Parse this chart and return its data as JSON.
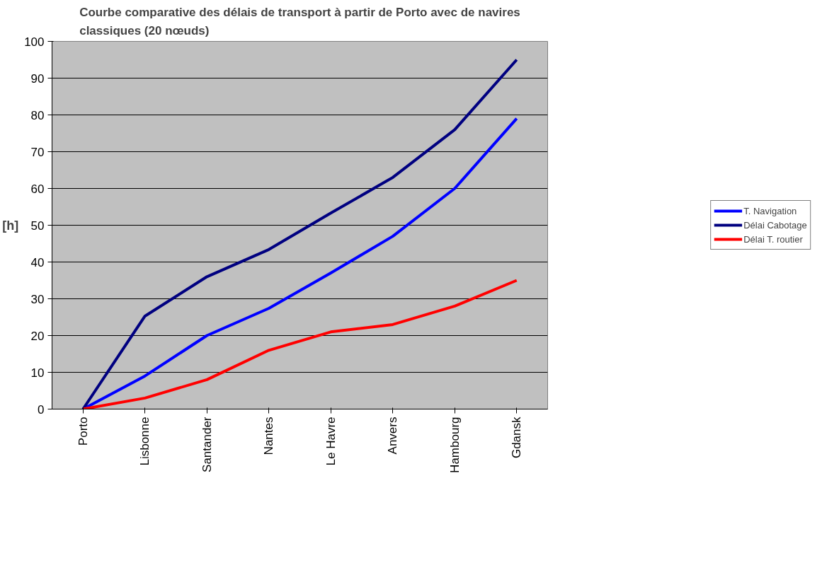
{
  "chart_data": {
    "type": "line",
    "title": "Courbe comparative des délais de transport à partir de Porto avec de navires classiques (20 nœuds)",
    "ylabel": "[h]",
    "categories": [
      "Porto",
      "Lisbonne",
      "Santander",
      "Nantes",
      "Le Havre",
      "Anvers",
      "Hambourg",
      "Gdansk"
    ],
    "series": [
      {
        "name": "T. Navigation",
        "color": "#0000ff",
        "values": [
          0,
          9,
          20,
          27.4,
          37,
          47,
          60,
          79
        ]
      },
      {
        "name": "Délai Cabotage",
        "color": "#000080",
        "values": [
          0,
          25.3,
          36,
          43.4,
          53.3,
          63,
          76,
          95
        ]
      },
      {
        "name": "Délai T. routier",
        "color": "#ff0000",
        "values": [
          0,
          3,
          8,
          16,
          21,
          23,
          28,
          35
        ]
      }
    ],
    "ylim": [
      0,
      100
    ],
    "yticks": [
      0,
      10,
      20,
      30,
      40,
      50,
      60,
      70,
      80,
      90,
      100
    ],
    "grid": "y",
    "legend": "right",
    "marker": "none",
    "line_style": "solid"
  }
}
